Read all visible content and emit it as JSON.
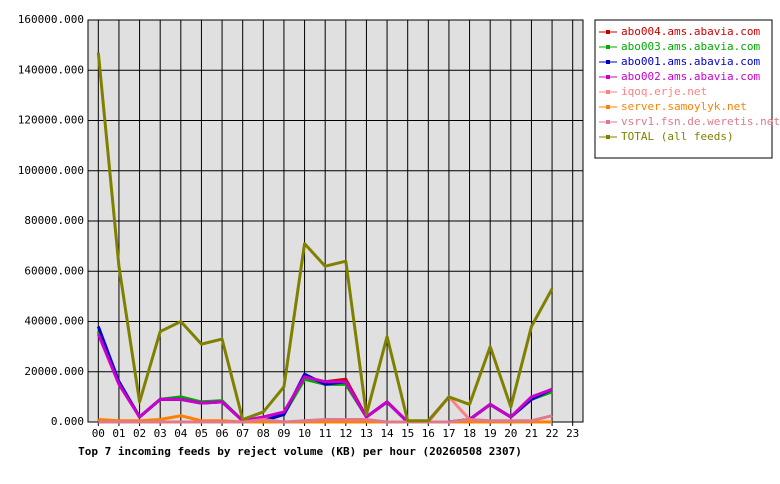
{
  "chart_data": {
    "type": "line",
    "title": "Top 7 incoming feeds by reject volume (KB) per hour (20260508 2307)",
    "categories": [
      "00",
      "01",
      "02",
      "03",
      "04",
      "05",
      "06",
      "07",
      "08",
      "09",
      "10",
      "11",
      "12",
      "13",
      "14",
      "15",
      "16",
      "17",
      "18",
      "19",
      "20",
      "21",
      "22",
      "23"
    ],
    "ylim": [
      0,
      160000
    ],
    "yticks": [
      {
        "value": 0,
        "label": "0.000"
      },
      {
        "value": 20000,
        "label": "20000.000"
      },
      {
        "value": 40000,
        "label": "40000.000"
      },
      {
        "value": 60000,
        "label": "60000.000"
      },
      {
        "value": 80000,
        "label": "80000.000"
      },
      {
        "value": 100000,
        "label": "100000.000"
      },
      {
        "value": 120000,
        "label": "120000.000"
      },
      {
        "value": 140000,
        "label": "140000.000"
      },
      {
        "value": 160000,
        "label": "160000.000"
      }
    ],
    "grid": true,
    "legend": "right",
    "series": [
      {
        "name": "abo004.ams.abavia.com",
        "color": "#cc0000",
        "values": [
          36000,
          16000,
          2000,
          9000,
          9000,
          8000,
          8000,
          500,
          500,
          3000,
          18000,
          16000,
          17000,
          2000,
          8000,
          0,
          0,
          0,
          1000,
          7000,
          2000,
          9000,
          13000,
          null
        ]
      },
      {
        "name": "abo003.ams.abavia.com",
        "color": "#00aa00",
        "values": [
          36000,
          16000,
          2000,
          9000,
          10000,
          8000,
          8500,
          500,
          500,
          3000,
          17000,
          15000,
          15000,
          2000,
          8000,
          0,
          0,
          0,
          1000,
          7000,
          2000,
          9000,
          12000,
          null
        ]
      },
      {
        "name": "abo001.ams.abavia.com",
        "color": "#0000cc",
        "values": [
          38000,
          16000,
          2000,
          9000,
          9000,
          7500,
          8000,
          500,
          500,
          3000,
          19000,
          15000,
          16000,
          2000,
          8000,
          0,
          0,
          0,
          1000,
          7000,
          2000,
          9000,
          13000,
          null
        ]
      },
      {
        "name": "abo002.ams.abavia.com",
        "color": "#cc00cc",
        "values": [
          35000,
          15000,
          2000,
          9000,
          9000,
          7500,
          8000,
          500,
          2000,
          4000,
          18000,
          16000,
          16000,
          2000,
          8000,
          0,
          0,
          0,
          1000,
          7000,
          2000,
          10000,
          13000,
          null
        ]
      },
      {
        "name": "iqoq.erje.net",
        "color": "#ff8080",
        "values": [
          500,
          0,
          0,
          0,
          0,
          0,
          0,
          0,
          0,
          0,
          0,
          0,
          0,
          0,
          0,
          0,
          0,
          10000,
          1000,
          0,
          0,
          0,
          0,
          null
        ]
      },
      {
        "name": "server.samoylyk.net",
        "color": "#ff8000",
        "values": [
          1000,
          500,
          500,
          1000,
          2500,
          500,
          500,
          0,
          0,
          0,
          0,
          0,
          0,
          0,
          0,
          0,
          0,
          0,
          0,
          0,
          0,
          0,
          0,
          null
        ]
      },
      {
        "name": "vsrv1.fsn.de.weretis.net",
        "color": "#e07a8a",
        "values": [
          0,
          0,
          0,
          0,
          0,
          0,
          0,
          0,
          1000,
          0,
          500,
          1000,
          1000,
          1000,
          0,
          0,
          0,
          0,
          1000,
          500,
          500,
          500,
          2500,
          null
        ]
      },
      {
        "name": "TOTAL (all feeds)",
        "color": "#808000",
        "values": [
          147000,
          62000,
          8000,
          36000,
          40000,
          31000,
          33000,
          1000,
          4000,
          14000,
          71000,
          62000,
          64000,
          3000,
          34000,
          500,
          500,
          10000,
          7000,
          30000,
          6000,
          38000,
          53000,
          null
        ]
      }
    ]
  }
}
